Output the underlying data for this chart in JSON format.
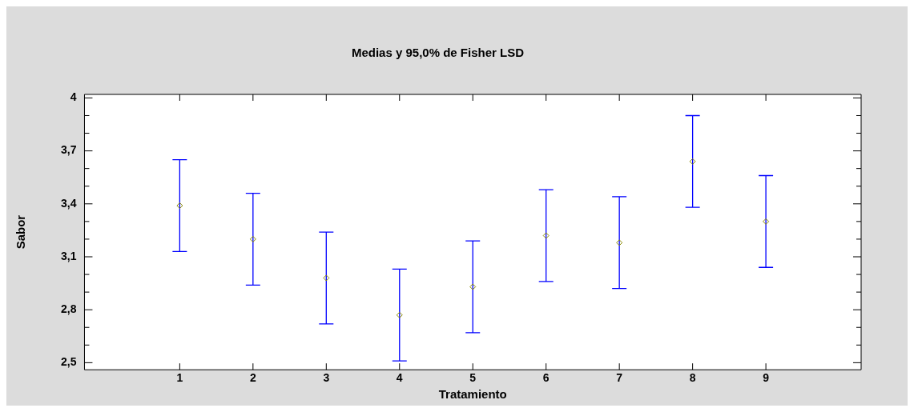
{
  "chart_data": {
    "type": "scatter",
    "title": "Medias y 95,0% de Fisher LSD",
    "xlabel": "Tratamiento",
    "ylabel": "Sabor",
    "x": [
      1,
      2,
      3,
      4,
      5,
      6,
      7,
      8,
      9
    ],
    "series": [
      {
        "color": "#8a8a00",
        "values": [
          3.39,
          3.2,
          2.98,
          2.77,
          2.93,
          3.22,
          3.18,
          3.64,
          3.3
        ],
        "errors": [
          0.26,
          0.26,
          0.26,
          0.26,
          0.26,
          0.26,
          0.26,
          0.26,
          0.26
        ]
      }
    ],
    "marker": "diamond",
    "grid": false,
    "legend": false,
    "xlim": [
      -0.3,
      10.3
    ],
    "xticks": [
      1,
      2,
      3,
      4,
      5,
      6,
      7,
      8,
      9
    ],
    "ylim": [
      2.46,
      4.02
    ],
    "yticks": [
      {
        "value": 2.5,
        "label": "2,5"
      },
      {
        "value": 2.6,
        "label": null
      },
      {
        "value": 2.7,
        "label": null
      },
      {
        "value": 2.8,
        "label": "2,8"
      },
      {
        "value": 2.9,
        "label": null
      },
      {
        "value": 3.0,
        "label": null
      },
      {
        "value": 3.1,
        "label": "3,1"
      },
      {
        "value": 3.2,
        "label": null
      },
      {
        "value": 3.3,
        "label": null
      },
      {
        "value": 3.4,
        "label": "3,4"
      },
      {
        "value": 3.5,
        "label": null
      },
      {
        "value": 3.6,
        "label": null
      },
      {
        "value": 3.7,
        "label": "3,7"
      },
      {
        "value": 3.8,
        "label": null
      },
      {
        "value": 3.9,
        "label": null
      },
      {
        "value": 4,
        "label": "4"
      }
    ]
  }
}
